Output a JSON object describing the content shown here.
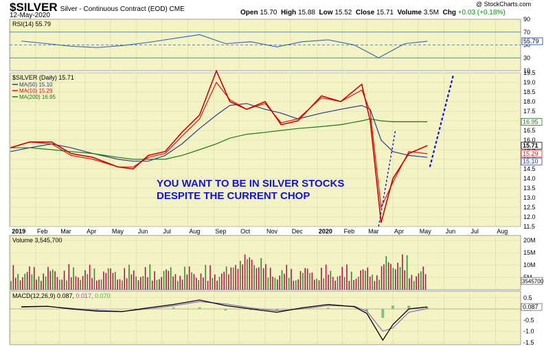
{
  "header": {
    "symbol": "$SILVER",
    "description": "Silver - Continuous Contract (EOD)",
    "exchange": "CME",
    "date": "12-May-2020",
    "open_label": "Open",
    "open": "15.70",
    "high_label": "High",
    "high": "15.88",
    "low_label": "Low",
    "low": "15.52",
    "close_label": "Close",
    "close": "15.71",
    "volume_label": "Volume",
    "volume": "3.5M",
    "chg_label": "Chg",
    "chg": "+0.03 (+0.18%)",
    "watermark": "@ StockCharts.com"
  },
  "colors": {
    "panel_bg": "#f3f3c4",
    "price_up": "#000000",
    "price_down": "#cc0000",
    "ma50": "#2c3a8f",
    "ma10": "#e01010",
    "ma200": "#1a7a1a",
    "rsi": "#2c5fb8",
    "annotation": "#1010e0",
    "vol_up": "#2e8b2e",
    "vol_down": "#b0144c"
  },
  "annotation": {
    "line1": "YOU WANT TO BE IN SILVER STOCKS",
    "line2": "DESPITE THE CURRENT CHOP"
  },
  "chart_data": [
    {
      "type": "line",
      "panel": "rsi",
      "legend": "RSI(14) 55.79",
      "current_value_label": "55.79",
      "yticks": [
        "90",
        "70",
        "50",
        "30",
        "10"
      ],
      "levels": [
        70,
        30
      ],
      "ylim": [
        10,
        90
      ],
      "x": [
        "2019-01",
        "2019-02",
        "2019-03",
        "2019-04",
        "2019-05",
        "2019-06",
        "2019-07",
        "2019-08",
        "2019-09",
        "2019-10",
        "2019-11",
        "2019-12",
        "2020-01",
        "2020-02",
        "2020-03",
        "2020-04",
        "2020-05-12"
      ],
      "values": [
        56,
        52,
        48,
        46,
        49,
        54,
        60,
        66,
        52,
        55,
        47,
        55,
        58,
        50,
        30,
        52,
        55.79
      ]
    },
    {
      "type": "line",
      "panel": "price",
      "legend_title": "$SILVER (Daily) 15.71",
      "current_price_label": "15.71",
      "ylim": [
        11.5,
        19.5
      ],
      "yticks": [
        "19.5",
        "19.0",
        "18.5",
        "18.0",
        "17.5",
        "17.0",
        "16.5",
        "16.0",
        "15.5",
        "15.0",
        "14.5",
        "14.0",
        "13.5",
        "13.0",
        "12.5",
        "12.0",
        "11.5"
      ],
      "xticks": [
        "2019",
        "Feb",
        "Mar",
        "Apr",
        "May",
        "Jun",
        "Jul",
        "Aug",
        "Sep",
        "Oct",
        "Nov",
        "Dec",
        "2020",
        "Feb",
        "Mar",
        "Apr",
        "May",
        "Jun",
        "Jul",
        "Aug"
      ],
      "x": [
        "2019-01-02",
        "2019-01-25",
        "2019-02-20",
        "2019-03-15",
        "2019-04-10",
        "2019-05-10",
        "2019-05-28",
        "2019-06-15",
        "2019-07-05",
        "2019-07-25",
        "2019-08-15",
        "2019-09-04",
        "2019-09-20",
        "2019-10-10",
        "2019-11-01",
        "2019-11-20",
        "2019-12-10",
        "2020-01-07",
        "2020-01-30",
        "2020-02-24",
        "2020-03-05",
        "2020-03-18",
        "2020-04-01",
        "2020-04-20",
        "2020-05-12"
      ],
      "values": [
        15.6,
        15.9,
        15.9,
        15.3,
        15.1,
        14.6,
        14.5,
        15.2,
        15.4,
        16.4,
        17.3,
        19.6,
        18.0,
        17.6,
        18.0,
        16.8,
        17.0,
        18.3,
        18.0,
        18.9,
        17.0,
        11.7,
        14.0,
        15.3,
        15.71
      ],
      "series": [
        {
          "name": "MA(50) 15.10",
          "values": [
            15.4,
            15.6,
            15.8,
            15.6,
            15.3,
            15.0,
            14.9,
            14.9,
            15.2,
            15.8,
            16.6,
            17.3,
            17.8,
            17.9,
            17.6,
            17.4,
            17.1,
            17.4,
            17.6,
            17.8,
            17.6,
            16.0,
            15.4,
            15.2,
            15.1
          ]
        },
        {
          "name": "MA(10) 15.29",
          "values": [
            15.6,
            15.9,
            15.8,
            15.2,
            15.0,
            14.6,
            14.6,
            15.1,
            15.3,
            16.2,
            17.1,
            19.0,
            18.1,
            17.6,
            17.9,
            16.9,
            17.1,
            18.2,
            18.0,
            18.6,
            17.5,
            12.5,
            13.8,
            15.4,
            15.29
          ]
        },
        {
          "name": "MA(200) 16.95",
          "values": [
            15.6,
            15.6,
            15.5,
            15.4,
            15.3,
            15.1,
            15.0,
            15.0,
            15.0,
            15.2,
            15.5,
            15.8,
            16.1,
            16.3,
            16.4,
            16.5,
            16.6,
            16.7,
            16.8,
            17.0,
            17.1,
            17.0,
            16.95,
            16.95,
            16.95
          ]
        }
      ],
      "right_labels": [
        "16.95",
        "15.71",
        "15.29",
        "15.10"
      ]
    },
    {
      "type": "bar",
      "panel": "volume",
      "legend": "Volume 3,545,700",
      "current_value_label": "3545700",
      "yticks": [
        "20M",
        "15M",
        "10M",
        "5M"
      ],
      "ylim": [
        0,
        22000000
      ]
    },
    {
      "type": "line",
      "panel": "macd",
      "legend_macd": "MACD(12,26,9) 0.087,",
      "legend_signal": "0.017,",
      "legend_hist": "0.070",
      "current_value_label": "0.087",
      "yticks": [
        "0.5",
        "0.0",
        "-0.5",
        "-1.0",
        "-1.5"
      ],
      "ylim": [
        -1.6,
        0.8
      ],
      "x": [
        "2019-01",
        "2019-02",
        "2019-03",
        "2019-04",
        "2019-05",
        "2019-06",
        "2019-07",
        "2019-08",
        "2019-09",
        "2019-10",
        "2019-11",
        "2019-12",
        "2020-01",
        "2020-02",
        "2020-03-01",
        "2020-03-20",
        "2020-04-01",
        "2020-04-20",
        "2020-05-12"
      ],
      "values": [
        0.1,
        0.12,
        0.0,
        -0.1,
        -0.12,
        0.05,
        0.2,
        0.4,
        0.15,
        0.0,
        -0.15,
        0.05,
        0.2,
        0.1,
        -0.2,
        -1.4,
        -0.7,
        0.0,
        0.087
      ],
      "series": [
        {
          "name": "signal",
          "values": [
            0.08,
            0.11,
            0.03,
            -0.06,
            -0.11,
            0.0,
            0.14,
            0.33,
            0.22,
            0.05,
            -0.08,
            0.0,
            0.15,
            0.12,
            -0.1,
            -1.0,
            -0.85,
            -0.15,
            0.017
          ]
        }
      ]
    }
  ]
}
